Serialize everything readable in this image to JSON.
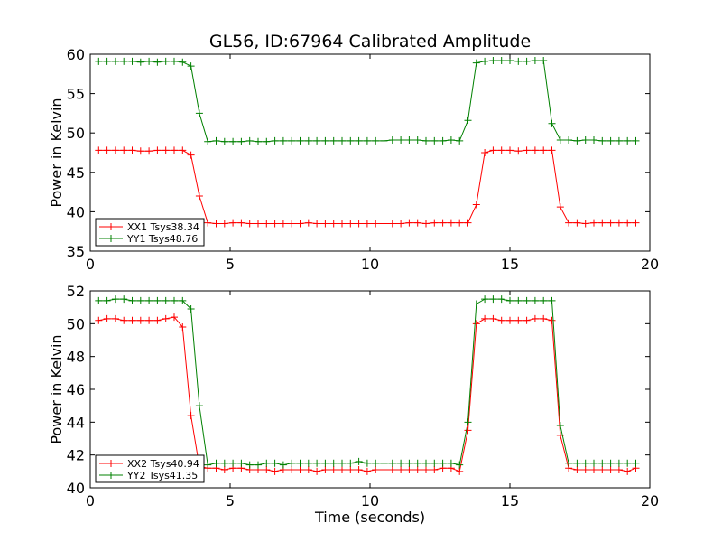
{
  "title": "GL56, ID:67964 Calibrated Amplitude",
  "colors": {
    "xx": "#ff0000",
    "yy": "#008000"
  },
  "chart_data": [
    {
      "type": "line",
      "ylabel": "Power in Kelvin",
      "xlabel": "",
      "xlim": [
        0,
        20
      ],
      "ylim": [
        35,
        60
      ],
      "xticks": [
        0,
        5,
        10,
        15,
        20
      ],
      "yticks": [
        35,
        40,
        45,
        50,
        55,
        60
      ],
      "legend_position": "lower-left",
      "grid": false,
      "series": [
        {
          "name": "XX1 Tsys38.34",
          "color": "red",
          "x": [
            0.3,
            0.6,
            0.9,
            1.2,
            1.5,
            1.8,
            2.1,
            2.4,
            2.7,
            3.0,
            3.3,
            3.6,
            3.9,
            4.2,
            4.5,
            4.8,
            5.1,
            5.4,
            5.7,
            6.0,
            6.3,
            6.6,
            6.9,
            7.2,
            7.5,
            7.8,
            8.1,
            8.4,
            8.7,
            9.0,
            9.3,
            9.6,
            9.9,
            10.2,
            10.5,
            10.8,
            11.1,
            11.4,
            11.7,
            12.0,
            12.3,
            12.6,
            12.9,
            13.2,
            13.5,
            13.8,
            14.1,
            14.4,
            14.7,
            15.0,
            15.3,
            15.6,
            15.9,
            16.2,
            16.5,
            16.8,
            17.1,
            17.4,
            17.7,
            18.0,
            18.3,
            18.6,
            18.9,
            19.2,
            19.5
          ],
          "y": [
            47.8,
            47.8,
            47.8,
            47.8,
            47.8,
            47.7,
            47.7,
            47.8,
            47.8,
            47.8,
            47.8,
            47.2,
            42.0,
            38.6,
            38.5,
            38.5,
            38.6,
            38.6,
            38.5,
            38.5,
            38.5,
            38.5,
            38.5,
            38.5,
            38.5,
            38.6,
            38.5,
            38.5,
            38.5,
            38.5,
            38.5,
            38.5,
            38.5,
            38.5,
            38.5,
            38.5,
            38.5,
            38.6,
            38.6,
            38.5,
            38.6,
            38.6,
            38.6,
            38.6,
            38.6,
            40.9,
            47.5,
            47.8,
            47.8,
            47.8,
            47.7,
            47.8,
            47.8,
            47.8,
            47.8,
            40.6,
            38.6,
            38.6,
            38.5,
            38.6,
            38.6,
            38.6,
            38.6,
            38.6,
            38.6
          ]
        },
        {
          "name": "YY1 Tsys48.76",
          "color": "green",
          "x": [
            0.3,
            0.6,
            0.9,
            1.2,
            1.5,
            1.8,
            2.1,
            2.4,
            2.7,
            3.0,
            3.3,
            3.6,
            3.9,
            4.2,
            4.5,
            4.8,
            5.1,
            5.4,
            5.7,
            6.0,
            6.3,
            6.6,
            6.9,
            7.2,
            7.5,
            7.8,
            8.1,
            8.4,
            8.7,
            9.0,
            9.3,
            9.6,
            9.9,
            10.2,
            10.5,
            10.8,
            11.1,
            11.4,
            11.7,
            12.0,
            12.3,
            12.6,
            12.9,
            13.2,
            13.5,
            13.8,
            14.1,
            14.4,
            14.7,
            15.0,
            15.3,
            15.6,
            15.9,
            16.2,
            16.5,
            16.8,
            17.1,
            17.4,
            17.7,
            18.0,
            18.3,
            18.6,
            18.9,
            19.2,
            19.5
          ],
          "y": [
            59.1,
            59.1,
            59.1,
            59.1,
            59.1,
            59.0,
            59.1,
            59.0,
            59.1,
            59.1,
            59.0,
            58.5,
            52.5,
            48.9,
            49.0,
            48.9,
            48.9,
            48.9,
            49.0,
            48.9,
            48.9,
            49.0,
            49.0,
            49.0,
            49.0,
            49.0,
            49.0,
            49.0,
            49.0,
            49.0,
            49.0,
            49.0,
            49.0,
            49.0,
            49.0,
            49.1,
            49.1,
            49.1,
            49.1,
            49.0,
            49.0,
            49.0,
            49.1,
            49.0,
            51.6,
            58.9,
            59.1,
            59.2,
            59.2,
            59.2,
            59.1,
            59.1,
            59.2,
            59.2,
            51.2,
            49.1,
            49.1,
            49.0,
            49.1,
            49.1,
            49.0,
            49.0,
            49.0,
            49.0,
            49.0
          ]
        }
      ]
    },
    {
      "type": "line",
      "ylabel": "Power in Kelvin",
      "xlabel": "Time (seconds)",
      "xlim": [
        0,
        20
      ],
      "ylim": [
        40,
        52
      ],
      "xticks": [
        0,
        5,
        10,
        15,
        20
      ],
      "yticks": [
        40,
        42,
        44,
        46,
        48,
        50,
        52
      ],
      "legend_position": "lower-left",
      "grid": false,
      "series": [
        {
          "name": "XX2 Tsys40.94",
          "color": "red",
          "x": [
            0.3,
            0.6,
            0.9,
            1.2,
            1.5,
            1.8,
            2.1,
            2.4,
            2.7,
            3.0,
            3.3,
            3.6,
            3.9,
            4.2,
            4.5,
            4.8,
            5.1,
            5.4,
            5.7,
            6.0,
            6.3,
            6.6,
            6.9,
            7.2,
            7.5,
            7.8,
            8.1,
            8.4,
            8.7,
            9.0,
            9.3,
            9.6,
            9.9,
            10.2,
            10.5,
            10.8,
            11.1,
            11.4,
            11.7,
            12.0,
            12.3,
            12.6,
            12.9,
            13.2,
            13.5,
            13.8,
            14.1,
            14.4,
            14.7,
            15.0,
            15.3,
            15.6,
            15.9,
            16.2,
            16.5,
            16.8,
            17.1,
            17.4,
            17.7,
            18.0,
            18.3,
            18.6,
            18.9,
            19.2,
            19.5
          ],
          "y": [
            50.2,
            50.3,
            50.3,
            50.2,
            50.2,
            50.2,
            50.2,
            50.2,
            50.3,
            50.4,
            49.8,
            44.4,
            41.3,
            41.2,
            41.2,
            41.1,
            41.2,
            41.2,
            41.1,
            41.1,
            41.1,
            41.0,
            41.1,
            41.1,
            41.1,
            41.1,
            41.0,
            41.1,
            41.1,
            41.1,
            41.1,
            41.1,
            41.0,
            41.1,
            41.1,
            41.1,
            41.1,
            41.1,
            41.1,
            41.1,
            41.1,
            41.2,
            41.2,
            41.0,
            43.5,
            50.0,
            50.3,
            50.3,
            50.2,
            50.2,
            50.2,
            50.2,
            50.3,
            50.3,
            50.2,
            43.2,
            41.2,
            41.1,
            41.1,
            41.1,
            41.1,
            41.1,
            41.1,
            41.0,
            41.2
          ]
        },
        {
          "name": "YY2 Tsys41.35",
          "color": "green",
          "x": [
            0.3,
            0.6,
            0.9,
            1.2,
            1.5,
            1.8,
            2.1,
            2.4,
            2.7,
            3.0,
            3.3,
            3.6,
            3.9,
            4.2,
            4.5,
            4.8,
            5.1,
            5.4,
            5.7,
            6.0,
            6.3,
            6.6,
            6.9,
            7.2,
            7.5,
            7.8,
            8.1,
            8.4,
            8.7,
            9.0,
            9.3,
            9.6,
            9.9,
            10.2,
            10.5,
            10.8,
            11.1,
            11.4,
            11.7,
            12.0,
            12.3,
            12.6,
            12.9,
            13.2,
            13.5,
            13.8,
            14.1,
            14.4,
            14.7,
            15.0,
            15.3,
            15.6,
            15.9,
            16.2,
            16.5,
            16.8,
            17.1,
            17.4,
            17.7,
            18.0,
            18.3,
            18.6,
            18.9,
            19.2,
            19.5
          ],
          "y": [
            51.4,
            51.4,
            51.5,
            51.5,
            51.4,
            51.4,
            51.4,
            51.4,
            51.4,
            51.4,
            51.4,
            50.9,
            45.0,
            41.4,
            41.5,
            41.5,
            41.5,
            41.5,
            41.4,
            41.4,
            41.5,
            41.5,
            41.4,
            41.5,
            41.5,
            41.5,
            41.5,
            41.5,
            41.5,
            41.5,
            41.5,
            41.6,
            41.5,
            41.5,
            41.5,
            41.5,
            41.5,
            41.5,
            41.5,
            41.5,
            41.5,
            41.5,
            41.5,
            41.4,
            44.0,
            51.2,
            51.5,
            51.5,
            51.5,
            51.4,
            51.4,
            51.4,
            51.4,
            51.4,
            51.4,
            43.8,
            41.5,
            41.5,
            41.5,
            41.5,
            41.5,
            41.5,
            41.5,
            41.5,
            41.5
          ]
        }
      ]
    }
  ]
}
